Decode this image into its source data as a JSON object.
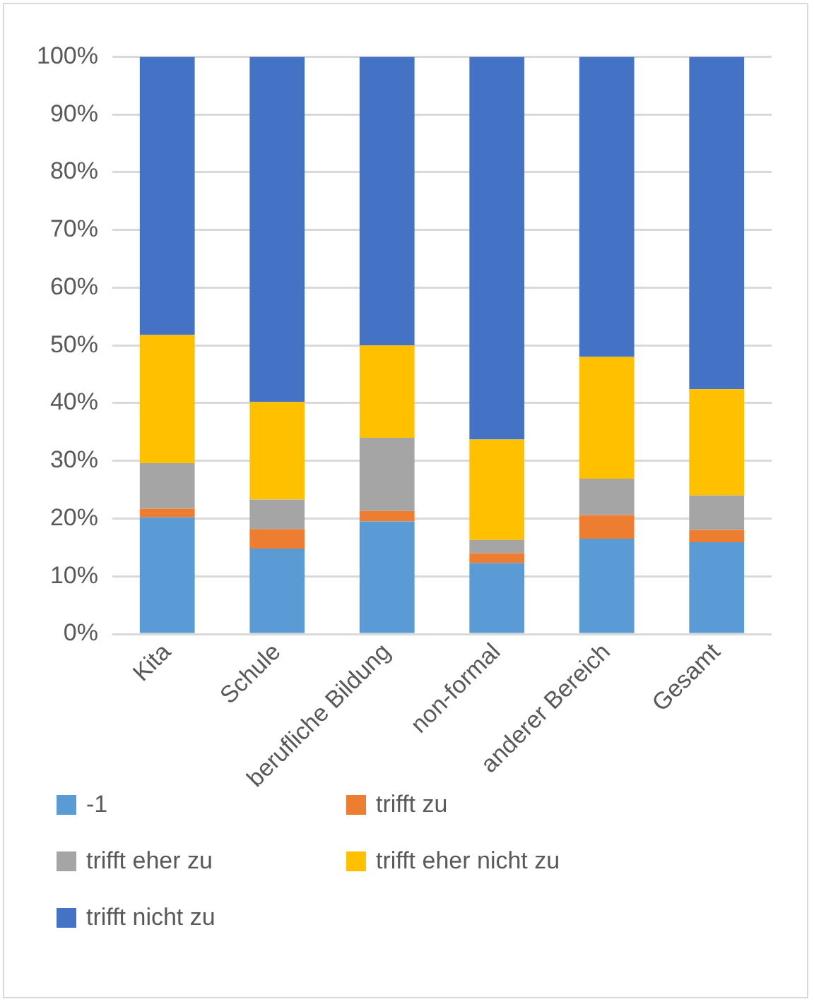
{
  "chart_data": {
    "type": "bar",
    "stacked": true,
    "categories": [
      "Kita",
      "Schule",
      "berufliche Bildung",
      "non-formal",
      "anderer Bereich",
      "Gesamt"
    ],
    "series": [
      {
        "name": "-1",
        "color": "#5b9bd5",
        "values": [
          20.2,
          14.8,
          19.5,
          12.3,
          16.5,
          15.9
        ]
      },
      {
        "name": "trifft zu",
        "color": "#ed7d31",
        "values": [
          1.5,
          3.4,
          1.8,
          1.7,
          4.1,
          2.1
        ]
      },
      {
        "name": "trifft eher zu",
        "color": "#a5a5a5",
        "values": [
          7.9,
          5.1,
          12.7,
          2.3,
          6.3,
          6.0
        ]
      },
      {
        "name": "trifft eher nicht zu",
        "color": "#ffc000",
        "values": [
          22.2,
          16.9,
          16.0,
          17.4,
          21.1,
          18.4
        ]
      },
      {
        "name": "trifft nicht zu",
        "color": "#4472c4",
        "values": [
          48.2,
          59.8,
          50.0,
          66.3,
          52.0,
          57.6
        ]
      }
    ],
    "ylim": [
      0,
      100
    ],
    "yticks": [
      {
        "value": 0,
        "label": "0%"
      },
      {
        "value": 10,
        "label": "10%"
      },
      {
        "value": 20,
        "label": "20%"
      },
      {
        "value": 30,
        "label": "30%"
      },
      {
        "value": 40,
        "label": "40%"
      },
      {
        "value": 50,
        "label": "50%"
      },
      {
        "value": 60,
        "label": "60%"
      },
      {
        "value": 70,
        "label": "70%"
      },
      {
        "value": 80,
        "label": "80%"
      },
      {
        "value": 90,
        "label": "90%"
      },
      {
        "value": 100,
        "label": "100%"
      }
    ],
    "grid": "y",
    "legend": "bottom"
  }
}
